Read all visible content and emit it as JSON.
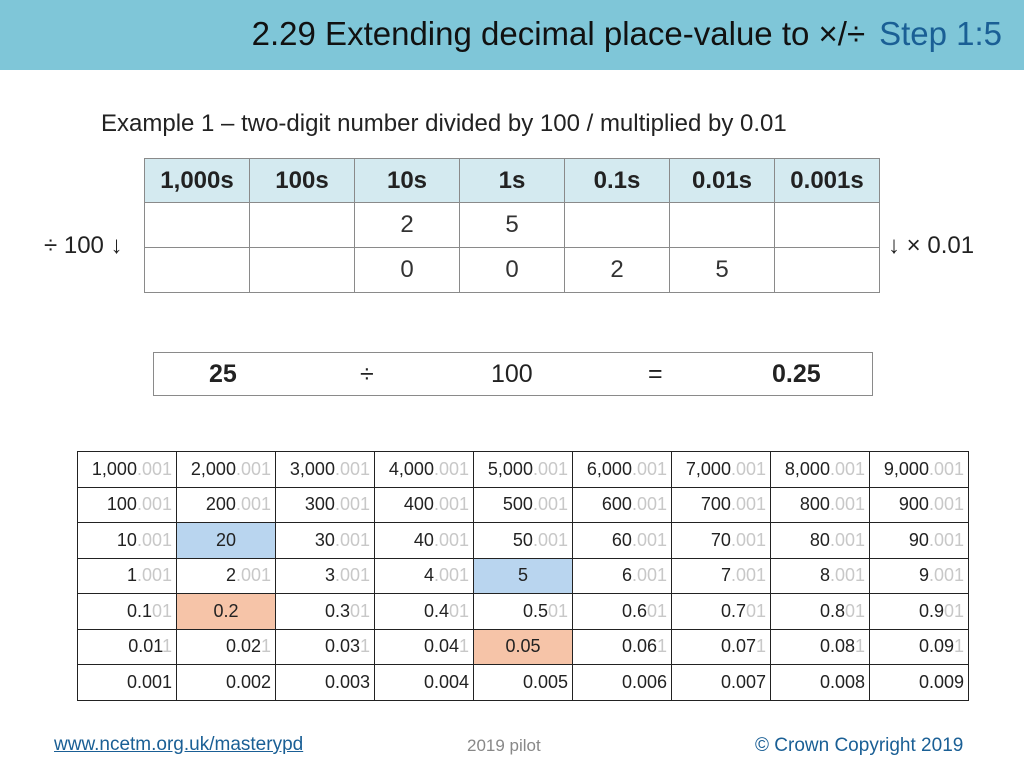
{
  "header": {
    "title": "2.29 Extending decimal place-value to ×/÷",
    "step": "Step 1:5"
  },
  "subtitle": "Example 1 – two-digit number divided by 100 / multiplied by 0.01",
  "place_value_table": {
    "headers": [
      "1,000s",
      "100s",
      "10s",
      "1s",
      "0.1s",
      "0.01s",
      "0.001s"
    ],
    "rows": [
      [
        "",
        "",
        "2",
        "5",
        "",
        "",
        ""
      ],
      [
        "",
        "",
        "0",
        "0",
        "2",
        "5",
        ""
      ]
    ],
    "left_label": "÷ 100 ↓",
    "right_label": "↓ × 0.01",
    "header_color": "#d4eaf0"
  },
  "equation": {
    "left": "25",
    "operator": "÷",
    "divisor": "100",
    "equals": "=",
    "result": "0.25"
  },
  "grid": {
    "highlight_colors": {
      "blue": "#b9d5ef",
      "orange": "#f6c4a8"
    },
    "rows": [
      [
        {
          "t": "1,000",
          "f": ".001"
        },
        {
          "t": "2,000",
          "f": ".001"
        },
        {
          "t": "3,000",
          "f": ".001"
        },
        {
          "t": "4,000",
          "f": ".001"
        },
        {
          "t": "5,000",
          "f": ".001"
        },
        {
          "t": "6,000",
          "f": ".001"
        },
        {
          "t": "7,000",
          "f": ".001"
        },
        {
          "t": "8,000",
          "f": ".001"
        },
        {
          "t": "9,000",
          "f": ".001"
        }
      ],
      [
        {
          "t": "100",
          "f": ".001"
        },
        {
          "t": "200",
          "f": ".001"
        },
        {
          "t": "300",
          "f": ".001"
        },
        {
          "t": "400",
          "f": ".001"
        },
        {
          "t": "500",
          "f": ".001"
        },
        {
          "t": "600",
          "f": ".001"
        },
        {
          "t": "700",
          "f": ".001"
        },
        {
          "t": "800",
          "f": ".001"
        },
        {
          "t": "900",
          "f": ".001"
        }
      ],
      [
        {
          "t": "10",
          "f": ".001"
        },
        {
          "t": "20",
          "f": "",
          "hl": "blue"
        },
        {
          "t": "30",
          "f": ".001"
        },
        {
          "t": "40",
          "f": ".001"
        },
        {
          "t": "50",
          "f": ".001"
        },
        {
          "t": "60",
          "f": ".001"
        },
        {
          "t": "70",
          "f": ".001"
        },
        {
          "t": "80",
          "f": ".001"
        },
        {
          "t": "90",
          "f": ".001"
        }
      ],
      [
        {
          "t": "1",
          "f": ".001"
        },
        {
          "t": "2",
          "f": ".001"
        },
        {
          "t": "3",
          "f": ".001"
        },
        {
          "t": "4",
          "f": ".001"
        },
        {
          "t": "5",
          "f": "",
          "hl": "blue"
        },
        {
          "t": "6",
          "f": ".001"
        },
        {
          "t": "7",
          "f": ".001"
        },
        {
          "t": "8",
          "f": ".001"
        },
        {
          "t": "9",
          "f": ".001"
        }
      ],
      [
        {
          "t": "0.1",
          "f": "01"
        },
        {
          "t": "0.2",
          "f": "",
          "hl": "orange"
        },
        {
          "t": "0.3",
          "f": "01"
        },
        {
          "t": "0.4",
          "f": "01"
        },
        {
          "t": "0.5",
          "f": "01"
        },
        {
          "t": "0.6",
          "f": "01"
        },
        {
          "t": "0.7",
          "f": "01"
        },
        {
          "t": "0.8",
          "f": "01"
        },
        {
          "t": "0.9",
          "f": "01"
        }
      ],
      [
        {
          "t": "0.01",
          "f": "1"
        },
        {
          "t": "0.02",
          "f": "1"
        },
        {
          "t": "0.03",
          "f": "1"
        },
        {
          "t": "0.04",
          "f": "1"
        },
        {
          "t": "0.05",
          "f": "",
          "hl": "orange"
        },
        {
          "t": "0.06",
          "f": "1"
        },
        {
          "t": "0.07",
          "f": "1"
        },
        {
          "t": "0.08",
          "f": "1"
        },
        {
          "t": "0.09",
          "f": "1"
        }
      ],
      [
        {
          "t": "0.001",
          "f": ""
        },
        {
          "t": "0.002",
          "f": ""
        },
        {
          "t": "0.003",
          "f": ""
        },
        {
          "t": "0.004",
          "f": ""
        },
        {
          "t": "0.005",
          "f": ""
        },
        {
          "t": "0.006",
          "f": ""
        },
        {
          "t": "0.007",
          "f": ""
        },
        {
          "t": "0.008",
          "f": ""
        },
        {
          "t": "0.009",
          "f": ""
        }
      ]
    ]
  },
  "footer": {
    "link": "www.ncetm.org.uk/masterypd",
    "pilot": "2019 pilot",
    "copyright": "© Crown Copyright 2019"
  }
}
